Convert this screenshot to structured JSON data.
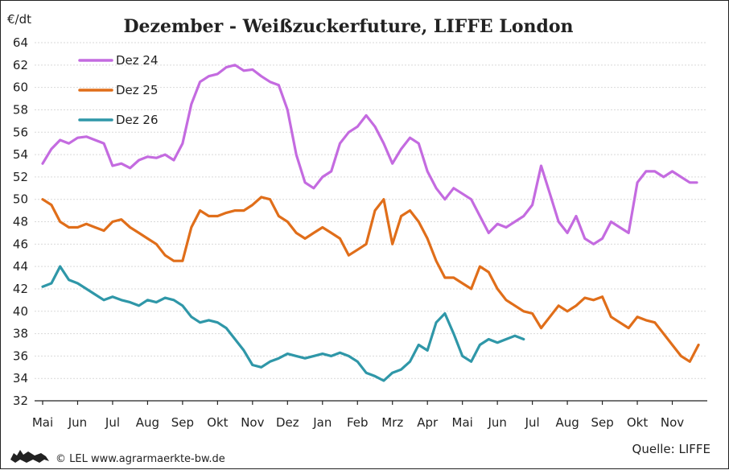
{
  "chart_data": {
    "type": "line",
    "title": "Dezember - Weißzuckerfuture, LIFFE London",
    "ylabel": "€/dt",
    "ylim": [
      32,
      64
    ],
    "yticks": [
      32,
      34,
      36,
      38,
      40,
      42,
      44,
      46,
      48,
      50,
      52,
      54,
      56,
      58,
      60,
      62,
      64
    ],
    "categories": [
      "Mai",
      "Jun",
      "Jul",
      "Aug",
      "Sep",
      "Okt",
      "Nov",
      "Dez",
      "Jan",
      "Feb",
      "Mrz",
      "Apr",
      "Mai",
      "Jun",
      "Jul",
      "Aug",
      "Sep",
      "Okt",
      "Nov"
    ],
    "xlim": [
      0,
      19
    ],
    "grid": true,
    "legend_position": "top-left",
    "series": [
      {
        "name": "Dez 24",
        "color": "#c46be0",
        "x": [
          0,
          0.25,
          0.5,
          0.75,
          1,
          1.25,
          1.5,
          1.75,
          2,
          2.25,
          2.5,
          2.75,
          3,
          3.25,
          3.5,
          3.75,
          4,
          4.25,
          4.5,
          4.75,
          5,
          5.25,
          5.5,
          5.75,
          6,
          6.25,
          6.5,
          6.75,
          7,
          7.25,
          7.5,
          7.75,
          8,
          8.25,
          8.5,
          8.75,
          9,
          9.25,
          9.5,
          9.75,
          10,
          10.25,
          10.5,
          10.75,
          11,
          11.25,
          11.5,
          11.75,
          12,
          12.25,
          12.5,
          12.75,
          13,
          13.25,
          13.5,
          13.75,
          14,
          14.25,
          14.5,
          14.75,
          15,
          15.25,
          15.5,
          15.75,
          16,
          16.25,
          16.5,
          16.75,
          17,
          17.25,
          17.5,
          17.75,
          18,
          18.25,
          18.5,
          18.7
        ],
        "values": [
          53.2,
          54.5,
          55.3,
          55.0,
          55.5,
          55.6,
          55.3,
          55.0,
          53.0,
          53.2,
          52.8,
          53.5,
          53.8,
          53.7,
          54.0,
          53.5,
          55.0,
          58.5,
          60.5,
          61.0,
          61.2,
          61.8,
          62.0,
          61.5,
          61.6,
          61.0,
          60.5,
          60.2,
          58.0,
          54.0,
          51.5,
          51.0,
          52.0,
          52.5,
          55.0,
          56.0,
          56.5,
          57.5,
          56.5,
          55.0,
          53.2,
          54.5,
          55.5,
          55.0,
          52.5,
          51.0,
          50.0,
          51.0,
          50.5,
          50.0,
          48.5,
          47.0,
          47.8,
          47.5,
          48.0,
          48.5,
          49.5,
          53.0,
          50.5,
          48.0,
          47.0,
          48.5,
          46.5,
          46.0,
          46.5,
          48.0,
          47.5,
          47.0,
          51.5,
          52.5,
          52.5,
          52.0,
          52.5,
          52.0,
          51.5,
          51.5
        ]
      },
      {
        "name": "Dez 25",
        "color": "#e06e1a",
        "x": [
          0,
          0.25,
          0.5,
          0.75,
          1,
          1.25,
          1.5,
          1.75,
          2,
          2.25,
          2.5,
          2.75,
          3,
          3.25,
          3.5,
          3.75,
          4,
          4.25,
          4.5,
          4.75,
          5,
          5.25,
          5.5,
          5.75,
          6,
          6.25,
          6.5,
          6.75,
          7,
          7.25,
          7.5,
          7.75,
          8,
          8.25,
          8.5,
          8.75,
          9,
          9.25,
          9.5,
          9.75,
          10,
          10.25,
          10.5,
          10.75,
          11,
          11.25,
          11.5,
          11.75,
          12,
          12.25,
          12.5,
          12.75,
          13,
          13.25,
          13.5,
          13.75,
          14,
          14.25,
          14.5,
          14.75,
          15,
          15.25,
          15.5,
          15.75,
          16,
          16.25,
          16.5,
          16.75,
          17,
          17.25,
          17.5,
          17.75,
          18,
          18.25,
          18.5,
          18.75
        ],
        "values": [
          50.0,
          49.5,
          48.0,
          47.5,
          47.5,
          47.8,
          47.5,
          47.2,
          48.0,
          48.2,
          47.5,
          47.0,
          46.5,
          46.0,
          45.0,
          44.5,
          44.5,
          47.5,
          49.0,
          48.5,
          48.5,
          48.8,
          49.0,
          49.0,
          49.5,
          50.2,
          50.0,
          48.5,
          48.0,
          47.0,
          46.5,
          47.0,
          47.5,
          47.0,
          46.5,
          45.0,
          45.5,
          46.0,
          49.0,
          50.0,
          46.0,
          48.5,
          49.0,
          48.0,
          46.5,
          44.5,
          43.0,
          43.0,
          42.5,
          42.0,
          44.0,
          43.5,
          42.0,
          41.0,
          40.5,
          40.0,
          39.8,
          38.5,
          39.5,
          40.5,
          40.0,
          40.5,
          41.2,
          41.0,
          41.3,
          39.5,
          39.0,
          38.5,
          39.5,
          39.2,
          39.0,
          38.0,
          37.0,
          36.0,
          35.5,
          37.0
        ]
      },
      {
        "name": "Dez 26",
        "color": "#2f97a8",
        "x": [
          0,
          0.25,
          0.5,
          0.75,
          1,
          1.25,
          1.5,
          1.75,
          2,
          2.25,
          2.5,
          2.75,
          3,
          3.25,
          3.5,
          3.75,
          4,
          4.25,
          4.5,
          4.75,
          5,
          5.25,
          5.5,
          5.75,
          6,
          6.25,
          6.5,
          6.75,
          7,
          7.25,
          7.5,
          7.75,
          8,
          8.25,
          8.5,
          8.75,
          9,
          9.25,
          9.5,
          9.75,
          10,
          10.25,
          10.5,
          10.75,
          11,
          11.25,
          11.5,
          11.75,
          12,
          12.25,
          12.5,
          12.75,
          13,
          13.25,
          13.5,
          13.75
        ],
        "values": [
          42.2,
          42.5,
          44.0,
          42.8,
          42.5,
          42.0,
          41.5,
          41.0,
          41.3,
          41.0,
          40.8,
          40.5,
          41.0,
          40.8,
          41.2,
          41.0,
          40.5,
          39.5,
          39.0,
          39.2,
          39.0,
          38.5,
          37.5,
          36.5,
          35.2,
          35.0,
          35.5,
          35.8,
          36.2,
          36.0,
          35.8,
          36.0,
          36.2,
          36.0,
          36.3,
          36.0,
          35.5,
          34.5,
          34.2,
          33.8,
          34.5,
          34.8,
          35.5,
          37.0,
          36.5,
          39.0,
          39.8,
          38.0,
          36.0,
          35.5,
          37.0,
          37.5,
          37.2,
          37.5,
          37.8,
          37.5
        ]
      }
    ]
  },
  "footer": {
    "copyright": "© LEL www.agrarmaerkte-bw.de",
    "source": "Quelle: LIFFE"
  }
}
